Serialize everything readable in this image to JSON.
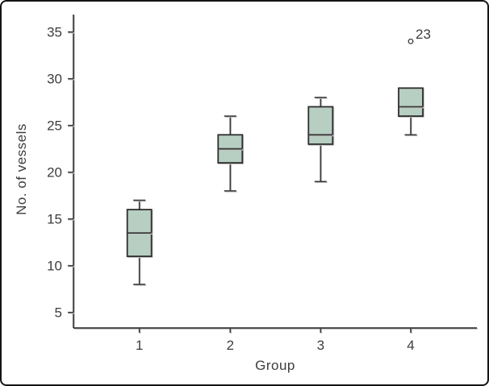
{
  "chart_data": {
    "type": "boxplot",
    "title": "",
    "xlabel": "Group",
    "ylabel": "No. of vessels",
    "categories": [
      "1",
      "2",
      "3",
      "4"
    ],
    "y_ticks": [
      5,
      10,
      15,
      20,
      25,
      30,
      35
    ],
    "ylim": [
      3.3,
      36.9
    ],
    "grid": false,
    "legend": "none",
    "series": [
      {
        "category": "1",
        "min": 8,
        "q1": 11,
        "median": 13.5,
        "q3": 16,
        "max": 17,
        "outliers": []
      },
      {
        "category": "2",
        "min": 18,
        "q1": 21,
        "median": 22.5,
        "q3": 24,
        "max": 26,
        "outliers": []
      },
      {
        "category": "3",
        "min": 19,
        "q1": 23,
        "median": 24,
        "q3": 27,
        "max": 28,
        "outliers": []
      },
      {
        "category": "4",
        "min": 24,
        "q1": 26,
        "median": 27,
        "q3": 29,
        "max": 29,
        "outliers": [
          {
            "value": 34,
            "label": "23"
          }
        ]
      }
    ],
    "colors": {
      "box_fill": "#b7cec2",
      "box_border": "#2e2e2e",
      "line": "#3a3a3a",
      "text": "#3d3d3d",
      "background": "#ffffff",
      "frame_border": "#141414"
    }
  }
}
